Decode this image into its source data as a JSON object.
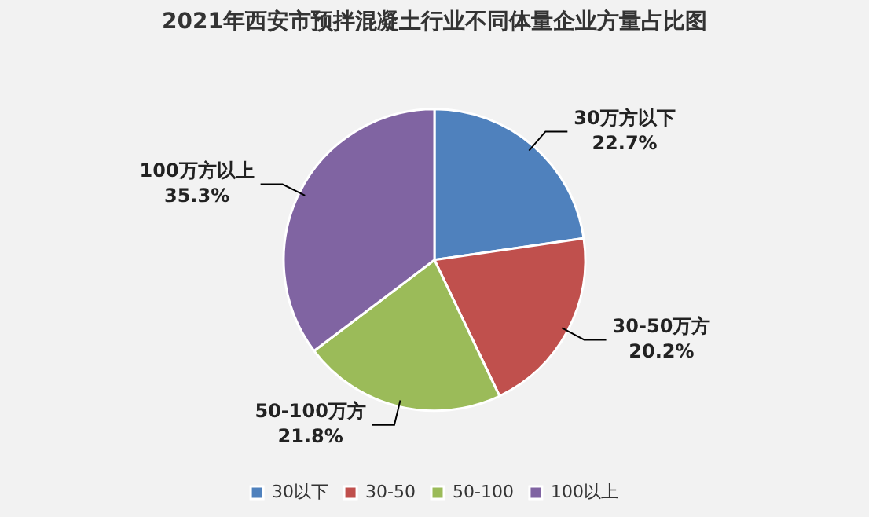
{
  "chart_data": {
    "type": "pie",
    "title": "2021年西安市预拌混凝土行业不同体量企业方量占比图",
    "categories": [
      "30以下",
      "30-50",
      "50-100",
      "100以上"
    ],
    "values": [
      22.7,
      20.2,
      21.8,
      35.3
    ],
    "colors": [
      "#4f81bd",
      "#c0504d",
      "#9bbb59",
      "#8064a2"
    ],
    "value_labels": [
      "30万方以下\n22.7%",
      "30-50万方\n20.2%",
      "50-100万方\n21.8%",
      "100万方以上\n35.3%"
    ],
    "legend": "bottom"
  }
}
